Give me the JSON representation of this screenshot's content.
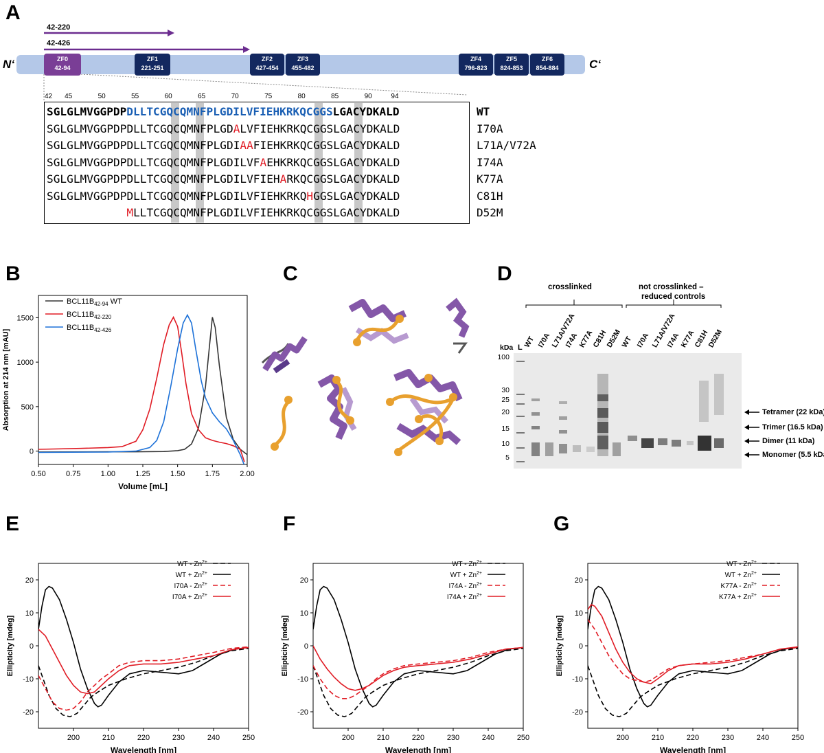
{
  "panel_labels": {
    "a": "A",
    "b": "B",
    "c": "C",
    "d": "D",
    "e": "E",
    "f": "F",
    "g": "G"
  },
  "panel_a": {
    "n_term": "N‘",
    "c_term": "C‘",
    "constructs": [
      "42-220",
      "42-426"
    ],
    "zinc_fingers": [
      {
        "name": "ZF0",
        "range": "42-94"
      },
      {
        "name": "ZF1",
        "range": "221-251"
      },
      {
        "name": "ZF2",
        "range": "427-454"
      },
      {
        "name": "ZF3",
        "range": "455-482"
      },
      {
        "name": "ZF4",
        "range": "796-823"
      },
      {
        "name": "ZF5",
        "range": "824-853"
      },
      {
        "name": "ZF6",
        "range": "854-884"
      }
    ],
    "residue_numbers": [
      "42",
      "45",
      "50",
      "55",
      "60",
      "65",
      "70",
      "75",
      "80",
      "85",
      "90",
      "94"
    ],
    "sequences": [
      {
        "name": "WT",
        "seq": "SGLGLMVGGPDPDLLTCGQCQMNFPLGDILVFIEHKRKQCGGSLGACYDKALD"
      },
      {
        "name": "I70A",
        "seq": "SGLGLMVGGPDPDLLTCGQCQMNFPLGDALVFIEHKRKQCGGSLGACYDKALD"
      },
      {
        "name": "L71A/V72A",
        "seq": "SGLGLMVGGPDPDLLTCGQCQMNFPLGDIAAFIEHKRKQCGGSLGACYDKALD"
      },
      {
        "name": "I74A",
        "seq": "SGLGLMVGGPDPDLLTCGQCQMNFPLGDILVFAEHKRKQCGGSLGACYDKALD"
      },
      {
        "name": "K77A",
        "seq": "SGLGLMVGGPDPDLLTCGQCQMNFPLGDILVFIEHARKQCGGSLGACYDKALD"
      },
      {
        "name": "C81H",
        "seq": "SGLGLMVGGPDPDLLTCGQCQMNFPLGDILVFIEHKRKQHGGSLGACYDKALD"
      },
      {
        "name": "D52M",
        "seq": "MLLTCGQCQMNFPLGDILVFIEHKRKQCGGSLGACYDKALD"
      }
    ]
  },
  "panel_b": {
    "xlabel": "Volume [mL]",
    "ylabel": "Absorption at 214 nm [mAU]",
    "legend": [
      {
        "main": "BCL11B",
        "sub": "42-94",
        "suffix": " WT",
        "color": "#333333"
      },
      {
        "main": "BCL11B",
        "sub": "42-220",
        "suffix": "",
        "color": "#e01b24"
      },
      {
        "main": "BCL11B",
        "sub": "42-426",
        "suffix": "",
        "color": "#1c71d8"
      }
    ]
  },
  "panel_d": {
    "group1": "crosslinked",
    "group2_line1": "not crosslinked –",
    "group2_line2": "reduced controls",
    "kda": "kDa",
    "ladder": "L",
    "lanes": [
      "WT",
      "I70A",
      "L71A/V72A",
      "I74A",
      "K77A",
      "C81H",
      "D52M",
      "WT",
      "I70A",
      "L71A/V72A",
      "I74A",
      "K77A",
      "C81H",
      "D52M"
    ],
    "mw_markers": [
      "100",
      "30",
      "25",
      "20",
      "15",
      "10",
      "5"
    ],
    "bands": [
      "Tetramer (22 kDa)",
      "Trimer (16.5 kDa)",
      "Dimer (11 kDa)",
      "Monomer (5.5 kDa)"
    ]
  },
  "cd_common": {
    "xlabel": "Wavelength [nm]",
    "ylabel": "Ellipticity [mdeg]"
  },
  "chart_data": [
    {
      "type": "line",
      "panel": "B",
      "xlabel": "Volume [mL]",
      "ylabel": "Absorption at 214 nm [mAU]",
      "xlim": [
        0.5,
        2.0
      ],
      "ylim": [
        -150,
        1750
      ],
      "xticks": [
        "0.50",
        "0.75",
        "1.00",
        "1.25",
        "1.50",
        "1.75",
        "2.00"
      ],
      "yticks": [
        "0",
        "500",
        "1000",
        "1500"
      ],
      "series": [
        {
          "name": "BCL11B42-94 WT",
          "color": "#333333",
          "x": [
            0.5,
            1.0,
            1.2,
            1.4,
            1.5,
            1.55,
            1.6,
            1.65,
            1.7,
            1.73,
            1.75,
            1.77,
            1.8,
            1.85,
            1.9,
            1.95,
            2.0
          ],
          "y": [
            -10,
            -8,
            -8,
            -5,
            5,
            20,
            80,
            260,
            720,
            1200,
            1505,
            1390,
            960,
            380,
            130,
            20,
            -40
          ]
        },
        {
          "name": "BCL11B42-220",
          "color": "#e01b24",
          "x": [
            0.5,
            0.8,
            1.0,
            1.1,
            1.2,
            1.25,
            1.3,
            1.35,
            1.4,
            1.44,
            1.47,
            1.5,
            1.53,
            1.56,
            1.6,
            1.65,
            1.7,
            1.75,
            1.8,
            1.85,
            1.9,
            1.95,
            1.98
          ],
          "y": [
            20,
            30,
            40,
            50,
            110,
            240,
            470,
            820,
            1200,
            1420,
            1505,
            1400,
            1100,
            760,
            420,
            240,
            150,
            120,
            100,
            85,
            60,
            20,
            -120
          ]
        },
        {
          "name": "BCL11B42-426",
          "color": "#1c71d8",
          "x": [
            0.5,
            1.0,
            1.2,
            1.3,
            1.35,
            1.4,
            1.45,
            1.5,
            1.54,
            1.57,
            1.6,
            1.63,
            1.67,
            1.7,
            1.75,
            1.8,
            1.85,
            1.9,
            1.95,
            1.98
          ],
          "y": [
            -15,
            -10,
            0,
            40,
            120,
            330,
            720,
            1150,
            1440,
            1530,
            1440,
            1150,
            790,
            600,
            430,
            330,
            250,
            120,
            -40,
            -160
          ]
        }
      ]
    },
    {
      "type": "line",
      "panel": "E",
      "xlabel": "Wavelength [nm]",
      "ylabel": "Ellipticity [mdeg]",
      "xlim": [
        190,
        250
      ],
      "ylim": [
        -25,
        25
      ],
      "xticks": [
        "200",
        "210",
        "220",
        "230",
        "240",
        "250"
      ],
      "yticks": [
        "20",
        "10",
        "0",
        "-10",
        "-20"
      ],
      "series": [
        {
          "name": "WT - Zn2+",
          "color": "#000000",
          "dash": true,
          "x": [
            190,
            193,
            195,
            197,
            199,
            201,
            203,
            205,
            207,
            210,
            215,
            220,
            225,
            230,
            235,
            240,
            245,
            250
          ],
          "y": [
            -6,
            -15,
            -19,
            -21,
            -21.5,
            -20.5,
            -18,
            -15.5,
            -14,
            -12,
            -10,
            -8.5,
            -7.5,
            -6.5,
            -5,
            -3,
            -1.5,
            -0.8
          ]
        },
        {
          "name": "WT + Zn2+",
          "color": "#000000",
          "dash": false,
          "x": [
            190,
            191,
            192,
            193,
            194,
            196,
            198,
            200,
            202,
            204,
            206,
            207,
            208,
            210,
            213,
            216,
            220,
            225,
            230,
            234,
            238,
            242,
            246,
            250
          ],
          "y": [
            5,
            12,
            17,
            18,
            17.5,
            14,
            8,
            1,
            -7,
            -13,
            -17.5,
            -18.5,
            -18,
            -15,
            -11,
            -8.5,
            -7.5,
            -8,
            -8.5,
            -7.5,
            -5,
            -2.5,
            -1,
            -0.5
          ]
        },
        {
          "name": "I70A - Zn2+",
          "color": "#e01b24",
          "dash": true,
          "x": [
            190,
            192,
            194,
            196,
            198,
            200,
            202,
            204,
            206,
            208,
            210,
            213,
            216,
            220,
            225,
            230,
            235,
            240,
            245,
            250
          ],
          "y": [
            -9,
            -13,
            -17,
            -19,
            -19.5,
            -19,
            -17,
            -14,
            -12,
            -10,
            -8.5,
            -6,
            -5,
            -4.5,
            -4.5,
            -4,
            -3,
            -2,
            -0.8,
            -0.3
          ]
        },
        {
          "name": "I70A + Zn2+",
          "color": "#e01b24",
          "dash": false,
          "x": [
            190,
            192,
            194,
            196,
            198,
            200,
            202,
            204,
            206,
            208,
            210,
            213,
            216,
            220,
            225,
            230,
            235,
            240,
            245,
            250
          ],
          "y": [
            5,
            3,
            -1,
            -5,
            -9,
            -12,
            -14,
            -14.5,
            -14,
            -12,
            -10,
            -7.5,
            -6,
            -5.5,
            -5.5,
            -5,
            -4,
            -3,
            -1.2,
            -0.5
          ]
        }
      ],
      "legend": [
        "WT - Zn2+",
        "WT + Zn2+",
        "I70A - Zn2+",
        "I70A + Zn2+"
      ]
    },
    {
      "type": "line",
      "panel": "F",
      "xlabel": "Wavelength [nm]",
      "ylabel": "Ellipticity [mdeg]",
      "xlim": [
        190,
        250
      ],
      "ylim": [
        -25,
        25
      ],
      "xticks": [
        "200",
        "210",
        "220",
        "230",
        "240",
        "250"
      ],
      "yticks": [
        "20",
        "10",
        "0",
        "-10",
        "-20"
      ],
      "series": [
        {
          "name": "WT - Zn2+",
          "color": "#000000",
          "dash": true,
          "x": [
            190,
            193,
            195,
            197,
            199,
            201,
            203,
            205,
            207,
            210,
            215,
            220,
            225,
            230,
            235,
            240,
            245,
            250
          ],
          "y": [
            -6,
            -15,
            -19,
            -21,
            -21.5,
            -20.5,
            -18,
            -15.5,
            -14,
            -12,
            -10,
            -8.5,
            -7.5,
            -6.5,
            -5,
            -3,
            -1.5,
            -0.8
          ]
        },
        {
          "name": "WT + Zn2+",
          "color": "#000000",
          "dash": false,
          "x": [
            190,
            191,
            192,
            193,
            194,
            196,
            198,
            200,
            202,
            204,
            206,
            207,
            208,
            210,
            213,
            216,
            220,
            225,
            230,
            234,
            238,
            242,
            246,
            250
          ],
          "y": [
            5,
            12,
            17,
            18,
            17.5,
            14,
            8,
            1,
            -7,
            -13,
            -17.5,
            -18.5,
            -18,
            -15,
            -11,
            -8.5,
            -7.5,
            -8,
            -8.5,
            -7.5,
            -5,
            -2.5,
            -1,
            -0.5
          ]
        },
        {
          "name": "I74A - Zn2+",
          "color": "#e01b24",
          "dash": true,
          "x": [
            190,
            192,
            194,
            196,
            198,
            200,
            202,
            204,
            206,
            208,
            210,
            213,
            216,
            220,
            225,
            230,
            235,
            240,
            245,
            250
          ],
          "y": [
            -6,
            -10,
            -13,
            -15,
            -16,
            -16,
            -15,
            -13.5,
            -12,
            -10,
            -8.5,
            -7,
            -6,
            -5.5,
            -5,
            -4.5,
            -3.5,
            -2,
            -1,
            -0.5
          ]
        },
        {
          "name": "I74A + Zn2+",
          "color": "#e01b24",
          "dash": false,
          "x": [
            190,
            192,
            194,
            196,
            198,
            200,
            202,
            204,
            206,
            208,
            210,
            213,
            216,
            220,
            225,
            230,
            235,
            240,
            245,
            250
          ],
          "y": [
            0,
            -4,
            -7,
            -9.5,
            -11.5,
            -13,
            -13.5,
            -13,
            -12,
            -10.5,
            -9,
            -7.5,
            -6.5,
            -6,
            -5.5,
            -5,
            -4,
            -2.5,
            -1,
            -0.5
          ]
        }
      ],
      "legend": [
        "WT - Zn2+",
        "WT + Zn2+",
        "I74A - Zn2+",
        "I74A + Zn2+"
      ]
    },
    {
      "type": "line",
      "panel": "G",
      "xlabel": "Wavelength [nm]",
      "ylabel": "Ellipticity [mdeg]",
      "xlim": [
        190,
        250
      ],
      "ylim": [
        -25,
        25
      ],
      "xticks": [
        "200",
        "210",
        "220",
        "230",
        "240",
        "250"
      ],
      "yticks": [
        "20",
        "10",
        "0",
        "-10",
        "-20"
      ],
      "series": [
        {
          "name": "WT - Zn2+",
          "color": "#000000",
          "dash": true,
          "x": [
            190,
            193,
            195,
            197,
            199,
            201,
            203,
            205,
            207,
            210,
            215,
            220,
            225,
            230,
            235,
            240,
            245,
            250
          ],
          "y": [
            -6,
            -15,
            -19,
            -21,
            -21.5,
            -20.5,
            -18,
            -15.5,
            -14,
            -12,
            -10,
            -8.5,
            -7.5,
            -6.5,
            -5,
            -3,
            -1.5,
            -0.8
          ]
        },
        {
          "name": "WT + Zn2+",
          "color": "#000000",
          "dash": false,
          "x": [
            190,
            191,
            192,
            193,
            194,
            196,
            198,
            200,
            202,
            204,
            206,
            207,
            208,
            210,
            213,
            216,
            220,
            225,
            230,
            234,
            238,
            242,
            246,
            250
          ],
          "y": [
            5,
            12,
            17,
            18,
            17.5,
            14,
            8,
            1,
            -7,
            -13,
            -17.5,
            -18.5,
            -18,
            -15,
            -11,
            -8.5,
            -7.5,
            -8,
            -8.5,
            -7.5,
            -5,
            -2.5,
            -1,
            -0.5
          ]
        },
        {
          "name": "K77A - Zn2+",
          "color": "#e01b24",
          "dash": true,
          "x": [
            190,
            192,
            194,
            196,
            198,
            200,
            202,
            204,
            206,
            208,
            210,
            213,
            216,
            220,
            225,
            230,
            235,
            240,
            245,
            250
          ],
          "y": [
            8,
            5,
            1,
            -3,
            -6,
            -8.5,
            -10,
            -10.5,
            -11,
            -10.5,
            -9,
            -7,
            -6,
            -5.5,
            -5,
            -4.5,
            -3.5,
            -2.5,
            -1,
            -0.5
          ]
        },
        {
          "name": "K77A + Zn2+",
          "color": "#e01b24",
          "dash": false,
          "x": [
            190,
            191,
            192,
            194,
            196,
            198,
            200,
            202,
            204,
            206,
            208,
            210,
            213,
            216,
            220,
            225,
            230,
            235,
            240,
            245,
            250
          ],
          "y": [
            11,
            12.5,
            12,
            9,
            4,
            -1,
            -5,
            -8,
            -10,
            -11,
            -11.5,
            -10,
            -7.5,
            -6,
            -5.5,
            -5.5,
            -5,
            -4,
            -2.5,
            -1,
            -0.3
          ]
        }
      ],
      "legend": [
        "WT - Zn2+",
        "WT + Zn2+",
        "K77A - Zn2+",
        "K77A + Zn2+"
      ]
    }
  ]
}
